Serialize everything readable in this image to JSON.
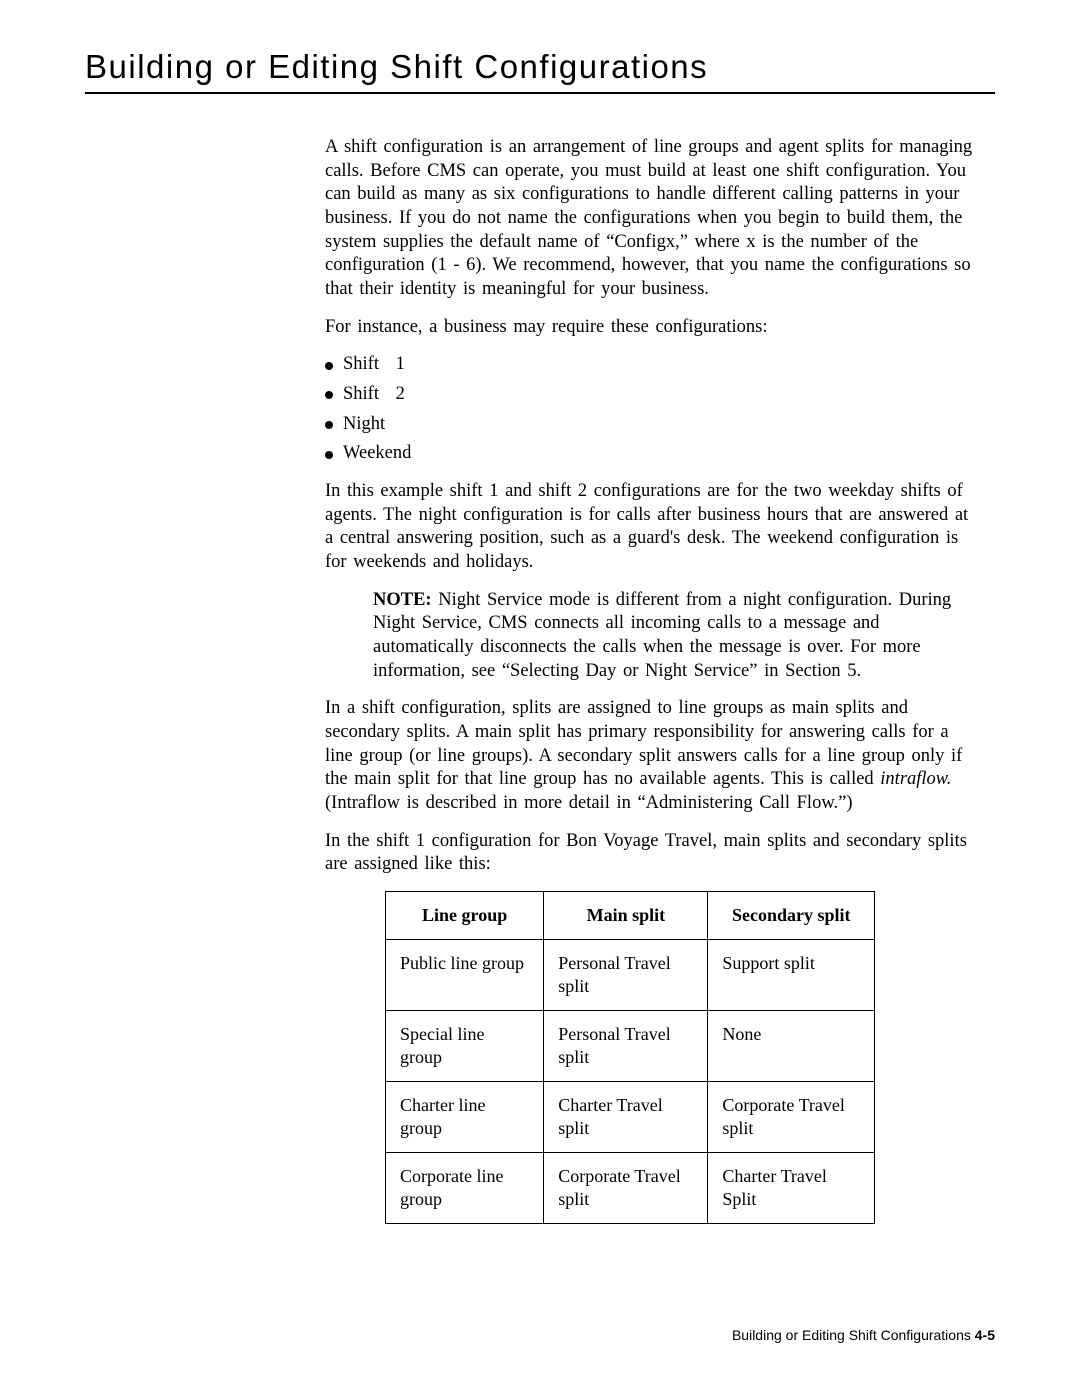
{
  "title": "Building or Editing Shift Configurations",
  "para1": "A shift configuration is an arrangement of line groups and agent splits for managing calls. Before CMS can operate, you must build at least one shift configuration.   You can build as many as six configurations to handle different calling patterns in your business. If you do not name the configurations when you begin to build them, the system supplies the default name of “Configx,” where x is the number of the configuration (1 - 6). We recommend, however, that you name the configurations so that their identity is meaningful for your business.",
  "para2": "For instance, a business may require these configurations:",
  "bullets": [
    {
      "label": "Shift",
      "num": "1"
    },
    {
      "label": "Shift",
      "num": "2"
    },
    {
      "label": "Night",
      "num": ""
    },
    {
      "label": "Weekend",
      "num": ""
    }
  ],
  "para3": "In this example shift 1 and shift 2 configurations are for the two weekday shifts of agents.  The night configuration is for calls after business hours that are answered at a central answering position, such as a guard's desk. The weekend configuration is for weekends and holidays.",
  "note_label": "NOTE:",
  "note_text": " Night Service mode is different from a night configuration. During Night Service, CMS connects all incoming calls to a message and automatically disconnects the calls when the message is over. For more information, see “Selecting Day or Night Service” in Section 5.",
  "para4a": "In a shift configuration, splits are assigned to line groups as main splits and secondary splits.  A main split has primary responsibility for answering calls for a line group (or line groups). A secondary split answers calls for a line group only if the main split for that line group has no available agents. This is called ",
  "para4_italic": "intraflow.",
  "para4b": " (Intraflow is described in more detail in “Administering Call Flow.”)",
  "para5": "In the shift 1 configuration for Bon Voyage Travel, main splits and secondary splits are assigned like this:",
  "table": {
    "headers": [
      "Line group",
      "Main split",
      "Secondary split"
    ],
    "rows": [
      [
        "Public line group",
        "Personal Travel split",
        "Support split"
      ],
      [
        "Special line group",
        "Personal Travel split",
        "None"
      ],
      [
        "Charter line group",
        "Charter Travel split",
        "Corporate Travel split"
      ],
      [
        "Corporate line group",
        "Corporate Travel split",
        "Charter Travel Split"
      ]
    ]
  },
  "footer_text": "Building or Editing Shift Configurations ",
  "footer_page": "4-5"
}
